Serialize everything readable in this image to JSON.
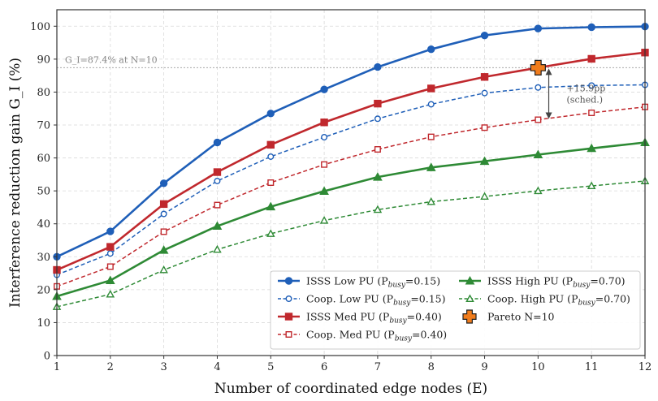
{
  "chart_data": {
    "type": "line",
    "xlabel": "Number of coordinated edge nodes (E)",
    "ylabel": "Interference reduction gain G_I (%)",
    "xlim": [
      1,
      12
    ],
    "ylim": [
      0,
      105
    ],
    "xticks": [
      "1",
      "2",
      "3",
      "4",
      "5",
      "6",
      "7",
      "8",
      "9",
      "10",
      "11",
      "12"
    ],
    "yticks": [
      "0",
      "10",
      "20",
      "30",
      "40",
      "50",
      "60",
      "70",
      "80",
      "90",
      "100"
    ],
    "grid": true,
    "legend_position": "lower-right",
    "x": [
      1,
      2,
      3,
      4,
      5,
      6,
      7,
      8,
      9,
      10,
      11,
      12
    ],
    "series": [
      {
        "name": "ISSS Low PU (",
        "sub": "busy",
        "suffix": "=0.15)",
        "color": "#1f5fb8",
        "dash": false,
        "marker": "circle",
        "filled": true,
        "values": [
          30,
          37.7,
          52.3,
          64.7,
          73.5,
          80.8,
          87.6,
          93,
          97.2,
          99.3,
          99.7,
          99.9
        ]
      },
      {
        "name": "Coop. Low PU (",
        "sub": "busy",
        "suffix": "=0.15)",
        "color": "#1f5fb8",
        "dash": true,
        "marker": "circle",
        "filled": false,
        "values": [
          24.5,
          31,
          43,
          53,
          60.4,
          66.3,
          71.9,
          76.3,
          79.7,
          81.4,
          82,
          82.2
        ]
      },
      {
        "name": "ISSS Med PU (",
        "sub": "busy",
        "suffix": "=0.40)",
        "color": "#c0282d",
        "dash": false,
        "marker": "square",
        "filled": true,
        "values": [
          26,
          33,
          46,
          55.7,
          64,
          70.8,
          76.5,
          81.1,
          84.6,
          87.4,
          90.1,
          92
        ]
      },
      {
        "name": "Coop. Med PU (",
        "sub": "busy",
        "suffix": "=0.40)",
        "color": "#c0282d",
        "dash": true,
        "marker": "square",
        "filled": false,
        "values": [
          21,
          27,
          37.6,
          45.7,
          52.5,
          58,
          62.6,
          66.4,
          69.2,
          71.6,
          73.7,
          75.5
        ]
      },
      {
        "name": "ISSS High PU (",
        "sub": "busy",
        "suffix": "=0.70)",
        "color": "#2e8a35",
        "dash": false,
        "marker": "triangle",
        "filled": true,
        "values": [
          18,
          22.8,
          32,
          39.3,
          45.2,
          49.9,
          54.2,
          57.1,
          59,
          61,
          62.9,
          64.7
        ]
      },
      {
        "name": "Coop. High PU (",
        "sub": "busy",
        "suffix": "=0.70)",
        "color": "#2e8a35",
        "dash": true,
        "marker": "triangle",
        "filled": false,
        "values": [
          14.8,
          18.6,
          26,
          32.2,
          37,
          41,
          44.3,
          46.7,
          48.3,
          50,
          51.5,
          53
        ]
      }
    ],
    "pareto": {
      "label": "Pareto N=10",
      "x": 10,
      "y": 87.4,
      "color": "#f07c1c"
    },
    "reference_line": {
      "y": 87.4,
      "label": "G_I=87.4% at N=10"
    },
    "gap_annotation": {
      "x": 10.2,
      "y_top": 87.4,
      "y_bottom": 71.6,
      "label_line1": "+15.9pp",
      "label_line2": "(sched.)"
    }
  }
}
